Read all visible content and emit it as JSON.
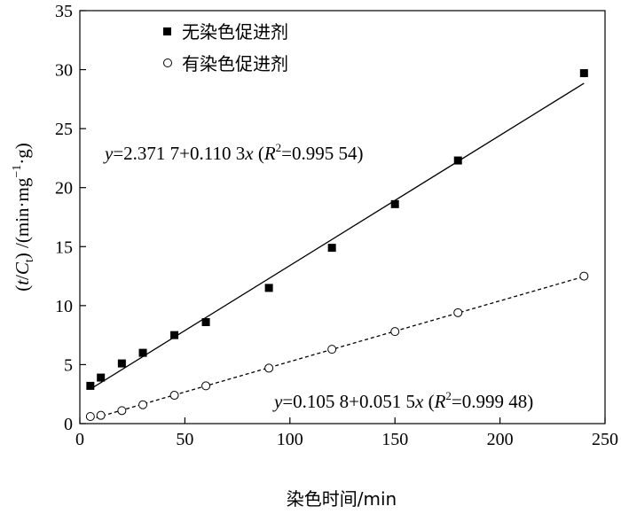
{
  "chart_data": {
    "type": "scatter",
    "title": "",
    "xlabel": "染色时间/min",
    "ylabel": "(t/Ct) /(min·mg⁻¹·g)",
    "ylabel_parts": {
      "open": "(",
      "t": "t",
      "slash": "/",
      "C": "C",
      "sub": "t",
      "rest": ") /(min·mg",
      "sup": "−1",
      "tail": "·g)"
    },
    "xlim": [
      0,
      250
    ],
    "ylim": [
      0,
      35
    ],
    "xticks": [
      0,
      50,
      100,
      150,
      200,
      250
    ],
    "yticks": [
      0,
      5,
      10,
      15,
      20,
      25,
      30,
      35
    ],
    "grid": false,
    "legend_position": "top-left",
    "series": [
      {
        "name": "无染色促进剂",
        "marker": "filled-square",
        "color": "#000000",
        "x": [
          5,
          10,
          20,
          30,
          45,
          60,
          90,
          120,
          150,
          180,
          240
        ],
        "y": [
          3.2,
          3.9,
          5.1,
          6.0,
          7.5,
          8.6,
          11.5,
          14.9,
          18.6,
          22.3,
          29.7
        ],
        "fit": {
          "intercept": 2.3717,
          "slope": 0.1103,
          "x_range": [
            5,
            240
          ],
          "style": "solid"
        },
        "equation": {
          "y": "y",
          "eq1": "=2.371 7+0.110 3",
          "x": "x",
          "r_open": " (",
          "R": "R",
          "sup": "2",
          "r_val": "=0.995 54)"
        }
      },
      {
        "name": "有染色促进剂",
        "marker": "open-circle",
        "color": "#000000",
        "x": [
          5,
          10,
          20,
          30,
          45,
          60,
          90,
          120,
          150,
          180,
          240
        ],
        "y": [
          0.6,
          0.7,
          1.1,
          1.6,
          2.4,
          3.2,
          4.7,
          6.3,
          7.8,
          9.4,
          12.5
        ],
        "fit": {
          "intercept": 0.1058,
          "slope": 0.0515,
          "x_range": [
            5,
            240
          ],
          "style": "dashed"
        },
        "equation": {
          "y": "y",
          "eq1": "=0.105 8+0.051 5",
          "x": "x",
          "r_open": " (",
          "R": "R",
          "sup": "2",
          "r_val": "=0.999 48)"
        }
      }
    ]
  }
}
